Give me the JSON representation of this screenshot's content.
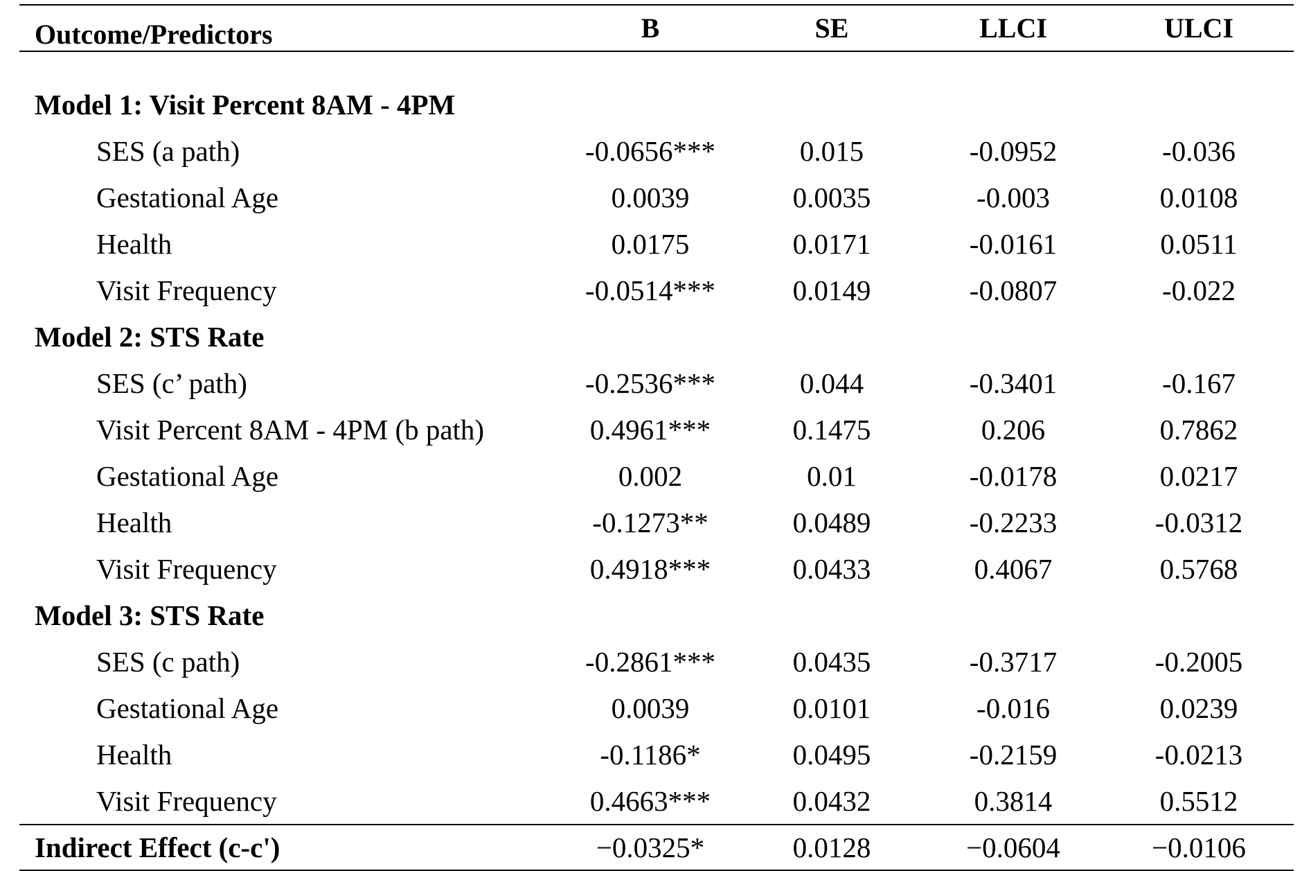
{
  "headers": {
    "label": "Outcome/Predictors",
    "b": "B",
    "se": "SE",
    "llci": "LLCI",
    "ulci": "ULCI"
  },
  "models": [
    {
      "title": "Model 1: Visit Percent 8AM - 4PM",
      "rows": [
        {
          "label": "SES (a path)",
          "b": "-0.0656***",
          "se": "0.015",
          "llci": "-0.0952",
          "ulci": "-0.036"
        },
        {
          "label": "Gestational Age",
          "b": "0.0039",
          "se": "0.0035",
          "llci": "-0.003",
          "ulci": "0.0108"
        },
        {
          "label": "Health",
          "b": "0.0175",
          "se": "0.0171",
          "llci": "-0.0161",
          "ulci": "0.0511"
        },
        {
          "label": "Visit Frequency",
          "b": "-0.0514***",
          "se": "0.0149",
          "llci": "-0.0807",
          "ulci": "-0.022"
        }
      ]
    },
    {
      "title": "Model 2: STS Rate",
      "rows": [
        {
          "label": "SES (c’ path)",
          "b": "-0.2536***",
          "se": "0.044",
          "llci": "-0.3401",
          "ulci": "-0.167"
        },
        {
          "label": "Visit Percent 8AM - 4PM (b path)",
          "b": "0.4961***",
          "se": "0.1475",
          "llci": "0.206",
          "ulci": "0.7862"
        },
        {
          "label": "Gestational Age",
          "b": "0.002",
          "se": "0.01",
          "llci": "-0.0178",
          "ulci": "0.0217"
        },
        {
          "label": "Health",
          "b": "-0.1273**",
          "se": "0.0489",
          "llci": "-0.2233",
          "ulci": "-0.0312"
        },
        {
          "label": "Visit Frequency",
          "b": "0.4918***",
          "se": "0.0433",
          "llci": "0.4067",
          "ulci": "0.5768"
        }
      ]
    },
    {
      "title": "Model 3: STS Rate",
      "rows": [
        {
          "label": "SES (c path)",
          "b": "-0.2861***",
          "se": "0.0435",
          "llci": "-0.3717",
          "ulci": "-0.2005"
        },
        {
          "label": "Gestational Age",
          "b": "0.0039",
          "se": "0.0101",
          "llci": "-0.016",
          "ulci": "0.0239"
        },
        {
          "label": "Health",
          "b": "-0.1186*",
          "se": "0.0495",
          "llci": "-0.2159",
          "ulci": "-0.0213"
        },
        {
          "label": "Visit Frequency",
          "b": "0.4663***",
          "se": "0.0432",
          "llci": "0.3814",
          "ulci": "0.5512"
        }
      ]
    }
  ],
  "indirect": {
    "label": "Indirect Effect (c-c')",
    "b": "−0.0325*",
    "se": "0.0128",
    "llci": "−0.0604",
    "ulci": "−0.0106"
  }
}
